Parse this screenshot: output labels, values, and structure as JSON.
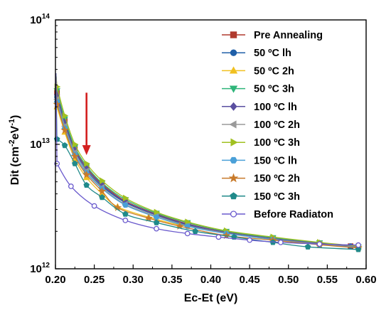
{
  "chart_data": {
    "type": "line",
    "xlabel": "Ec-Et (eV)",
    "ylabel_parts": [
      "Dit (cm",
      "-2",
      "eV",
      "-1",
      ")"
    ],
    "yscale": "log",
    "xlim": [
      0.2,
      0.6
    ],
    "ylim": [
      1000000000000.0,
      100000000000000.0
    ],
    "x_ticks": [
      {
        "value": 0.2,
        "label": "0.20"
      },
      {
        "value": 0.25,
        "label": "0.25"
      },
      {
        "value": 0.3,
        "label": "0.30"
      },
      {
        "value": 0.35,
        "label": "0.35"
      },
      {
        "value": 0.4,
        "label": "0.40"
      },
      {
        "value": 0.45,
        "label": "0.45"
      },
      {
        "value": 0.5,
        "label": "0.50"
      },
      {
        "value": 0.55,
        "label": "0.55"
      },
      {
        "value": 0.6,
        "label": "0.60"
      }
    ],
    "y_ticks": [
      {
        "value": 1000000000000.0,
        "base": "10",
        "exp": "12"
      },
      {
        "value": 10000000000000.0,
        "base": "10",
        "exp": "13"
      },
      {
        "value": 100000000000000.0,
        "base": "10",
        "exp": "14"
      }
    ],
    "grid": false,
    "legend_position": "top-right",
    "annotation": {
      "type": "arrow",
      "direction": "down",
      "color": "#d32020",
      "x": 0.24,
      "y_from": 26000000000000.0,
      "y_to": 8200000000000.0
    },
    "series": [
      {
        "name": "Pre Annealing",
        "color": "#b03a2e",
        "marker": "square",
        "x": [
          0.202,
          0.212,
          0.225,
          0.24,
          0.26,
          0.29,
          0.33,
          0.37,
          0.42,
          0.48,
          0.54,
          0.58
        ],
        "y": [
          26000000000000.0,
          15500000000000.0,
          9200000000000.0,
          6500000000000.0,
          4800000000000.0,
          3500000000000.0,
          2750000000000.0,
          2300000000000.0,
          1970000000000.0,
          1760000000000.0,
          1600000000000.0,
          1520000000000.0
        ]
      },
      {
        "name": "50 ºC lh",
        "color": "#1f5fa8",
        "marker": "circle",
        "x": [
          0.202,
          0.212,
          0.225,
          0.24,
          0.26,
          0.29,
          0.33,
          0.37,
          0.42,
          0.48,
          0.54,
          0.58
        ],
        "y": [
          24000000000000.0,
          14500000000000.0,
          8800000000000.0,
          6200000000000.0,
          4600000000000.0,
          3400000000000.0,
          2700000000000.0,
          2250000000000.0,
          1950000000000.0,
          1750000000000.0,
          1600000000000.0,
          1520000000000.0
        ]
      },
      {
        "name": "50 ºC 2h",
        "color": "#f0c020",
        "marker": "triangle-up",
        "x": [
          0.202,
          0.212,
          0.225,
          0.24,
          0.26,
          0.28,
          0.32,
          0.36,
          0.42,
          0.48,
          0.54,
          0.59
        ],
        "y": [
          20000000000000.0,
          12500000000000.0,
          7600000000000.0,
          5400000000000.0,
          4000000000000.0,
          3150000000000.0,
          2600000000000.0,
          2250000000000.0,
          1950000000000.0,
          1750000000000.0,
          1600000000000.0,
          1500000000000.0
        ]
      },
      {
        "name": "50 ºC 3h",
        "color": "#2fb57a",
        "marker": "triangle-down",
        "x": [
          0.202,
          0.212,
          0.225,
          0.24,
          0.26,
          0.29,
          0.33,
          0.37,
          0.42,
          0.48,
          0.54,
          0.59
        ],
        "y": [
          27000000000000.0,
          16000000000000.0,
          9500000000000.0,
          6700000000000.0,
          4900000000000.0,
          3600000000000.0,
          2800000000000.0,
          2350000000000.0,
          2000000000000.0,
          1780000000000.0,
          1620000000000.0,
          1500000000000.0
        ]
      },
      {
        "name": "100 ºC lh",
        "color": "#5a4fa0",
        "marker": "diamond",
        "x": [
          0.202,
          0.212,
          0.225,
          0.24,
          0.26,
          0.29,
          0.33,
          0.37,
          0.42,
          0.48,
          0.54,
          0.59
        ],
        "y": [
          25000000000000.0,
          15000000000000.0,
          9000000000000.0,
          6400000000000.0,
          4700000000000.0,
          3450000000000.0,
          2720000000000.0,
          2280000000000.0,
          1960000000000.0,
          1750000000000.0,
          1600000000000.0,
          1500000000000.0
        ]
      },
      {
        "name": "100 ºC 2h",
        "color": "#9a9a9a",
        "marker": "triangle-left",
        "x": [
          0.202,
          0.212,
          0.225,
          0.24,
          0.26,
          0.29,
          0.33,
          0.37,
          0.42,
          0.48,
          0.54,
          0.59
        ],
        "y": [
          23000000000000.0,
          14000000000000.0,
          8600000000000.0,
          6100000000000.0,
          4500000000000.0,
          3300000000000.0,
          2650000000000.0,
          2220000000000.0,
          1930000000000.0,
          1730000000000.0,
          1580000000000.0,
          1490000000000.0
        ]
      },
      {
        "name": "100 ºC 3h",
        "color": "#a0c020",
        "marker": "triangle-right",
        "x": [
          0.202,
          0.212,
          0.225,
          0.24,
          0.26,
          0.29,
          0.33,
          0.37,
          0.42,
          0.48,
          0.54,
          0.59
        ],
        "y": [
          29000000000000.0,
          17000000000000.0,
          10000000000000.0,
          7000000000000.0,
          5100000000000.0,
          3700000000000.0,
          2850000000000.0,
          2380000000000.0,
          2020000000000.0,
          1800000000000.0,
          1630000000000.0,
          1520000000000.0
        ]
      },
      {
        "name": "150 ºC lh",
        "color": "#4aa0d8",
        "marker": "hexagon",
        "x": [
          0.202,
          0.212,
          0.225,
          0.24,
          0.26,
          0.29,
          0.33,
          0.37,
          0.42,
          0.48,
          0.54,
          0.59
        ],
        "y": [
          22000000000000.0,
          13500000000000.0,
          8300000000000.0,
          5900000000000.0,
          4400000000000.0,
          3250000000000.0,
          2600000000000.0,
          2200000000000.0,
          1920000000000.0,
          1720000000000.0,
          1570000000000.0,
          1480000000000.0
        ]
      },
      {
        "name": "150 ºC 2h",
        "color": "#c87a2a",
        "marker": "star",
        "x": [
          0.202,
          0.212,
          0.225,
          0.24,
          0.26,
          0.28,
          0.32,
          0.36,
          0.42,
          0.48,
          0.54,
          0.59
        ],
        "y": [
          21000000000000.0,
          13000000000000.0,
          8000000000000.0,
          5700000000000.0,
          4200000000000.0,
          3100000000000.0,
          2550000000000.0,
          2200000000000.0,
          1850000000000.0,
          1700000000000.0,
          1560000000000.0,
          1470000000000.0
        ]
      },
      {
        "name": "150 ºC 3h",
        "color": "#208a8a",
        "marker": "pentagon",
        "x": [
          0.202,
          0.212,
          0.225,
          0.24,
          0.26,
          0.29,
          0.33,
          0.38,
          0.43,
          0.48,
          0.525,
          0.59
        ],
        "y": [
          11000000000000.0,
          9800000000000.0,
          7000000000000.0,
          4700000000000.0,
          3750000000000.0,
          2750000000000.0,
          2350000000000.0,
          2000000000000.0,
          1800000000000.0,
          1630000000000.0,
          1500000000000.0,
          1430000000000.0
        ]
      },
      {
        "name": "Before Radiaton",
        "color": "#6a5acd",
        "marker": "circle-open",
        "x": [
          0.202,
          0.22,
          0.25,
          0.29,
          0.33,
          0.37,
          0.41,
          0.45,
          0.49,
          0.54,
          0.59
        ],
        "y": [
          7000000000000.0,
          4600000000000.0,
          3200000000000.0,
          2450000000000.0,
          2100000000000.0,
          1920000000000.0,
          1800000000000.0,
          1700000000000.0,
          1630000000000.0,
          1580000000000.0,
          1550000000000.0
        ]
      }
    ]
  }
}
